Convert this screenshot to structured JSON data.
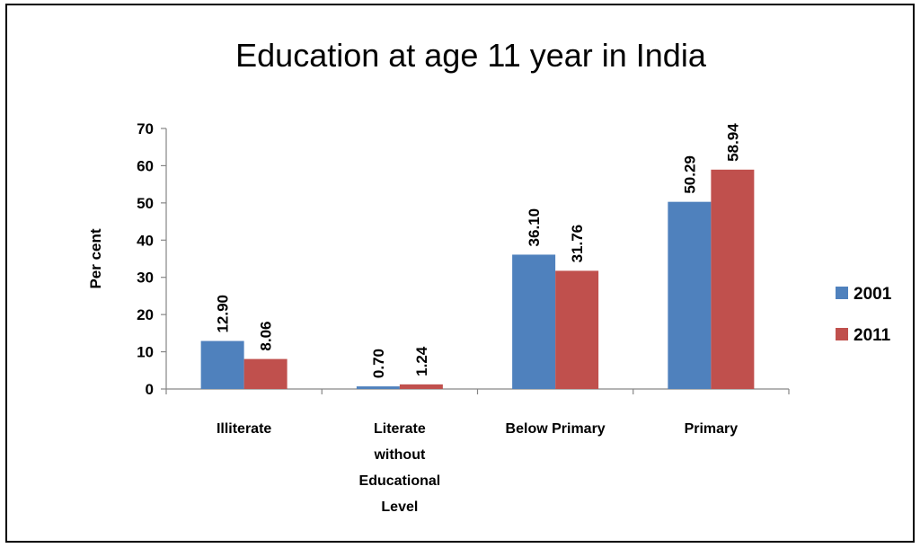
{
  "chart_data": {
    "type": "bar",
    "title": "Education at age 11 year in India",
    "ylabel": "Per cent",
    "xlabel": "",
    "ylim": [
      0,
      70
    ],
    "yticks": [
      0,
      10,
      20,
      30,
      40,
      50,
      60,
      70
    ],
    "grid": false,
    "legend_position": "right",
    "categories": [
      [
        "Illiterate"
      ],
      [
        "Literate",
        "without",
        "Educational",
        "Level"
      ],
      [
        "Below Primary"
      ],
      [
        "Primary"
      ]
    ],
    "series": [
      {
        "name": "2001",
        "color": "#4F81BD",
        "values": [
          12.9,
          0.7,
          36.1,
          50.29
        ],
        "labels": [
          "12.90",
          "0.70",
          "36.10",
          "50.29"
        ]
      },
      {
        "name": "2011",
        "color": "#C0504D",
        "values": [
          8.06,
          1.24,
          31.76,
          58.94
        ],
        "labels": [
          "8.06",
          "1.24",
          "31.76",
          "58.94"
        ]
      }
    ]
  }
}
